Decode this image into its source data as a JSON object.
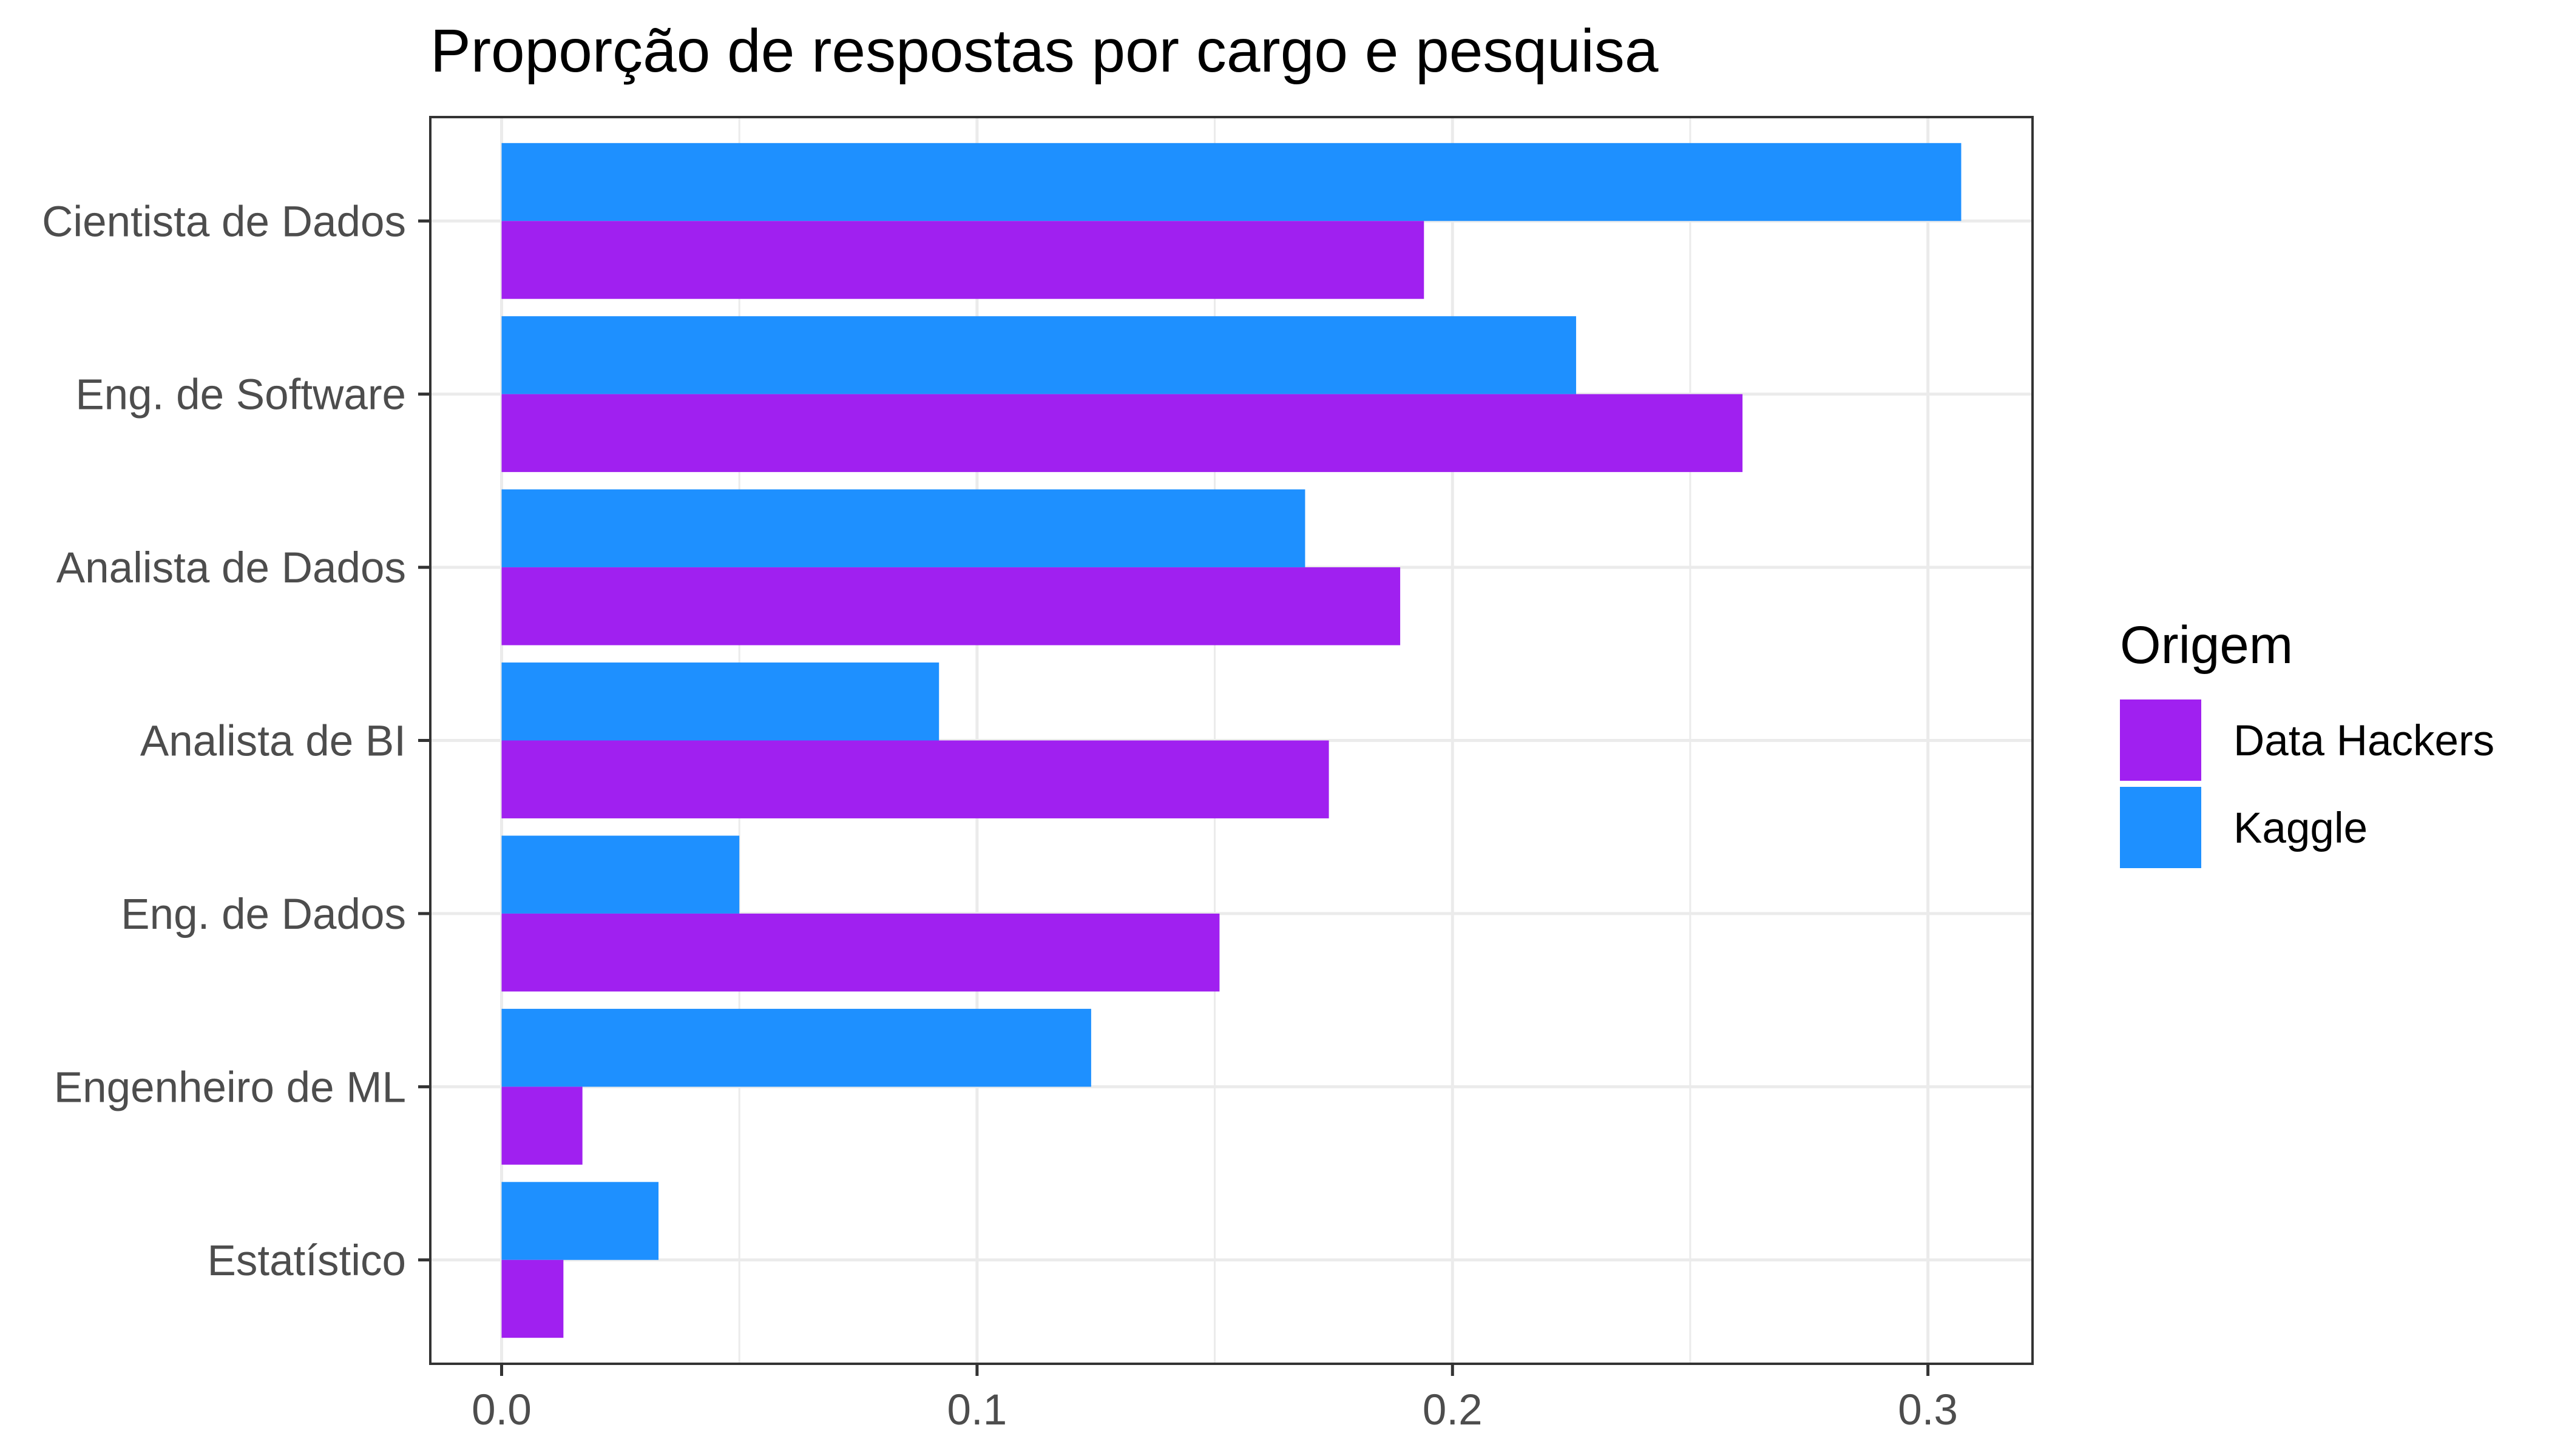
{
  "chart_data": {
    "type": "bar",
    "orientation": "horizontal",
    "title": "Proporção de respostas por cargo e pesquisa",
    "xlabel": "",
    "ylabel": "",
    "categories": [
      "Cientista de Dados",
      "Eng. de Software",
      "Analista de Dados",
      "Analista de BI",
      "Eng. de Dados",
      "Engenheiro de ML",
      "Estatístico"
    ],
    "series": [
      {
        "name": "Data Hackers",
        "color": "#A020F0",
        "values": [
          0.194,
          0.261,
          0.189,
          0.174,
          0.151,
          0.017,
          0.013
        ]
      },
      {
        "name": "Kaggle",
        "color": "#1E90FF",
        "values": [
          0.307,
          0.226,
          0.169,
          0.092,
          0.05,
          0.124,
          0.033
        ]
      }
    ],
    "xlim": [
      -0.015,
      0.322
    ],
    "xticks": [
      0.0,
      0.1,
      0.2,
      0.3
    ],
    "xtick_labels": [
      "0.0",
      "0.1",
      "0.2",
      "0.3"
    ],
    "grid": true,
    "legend": {
      "title": "Origem",
      "position": "right"
    }
  }
}
